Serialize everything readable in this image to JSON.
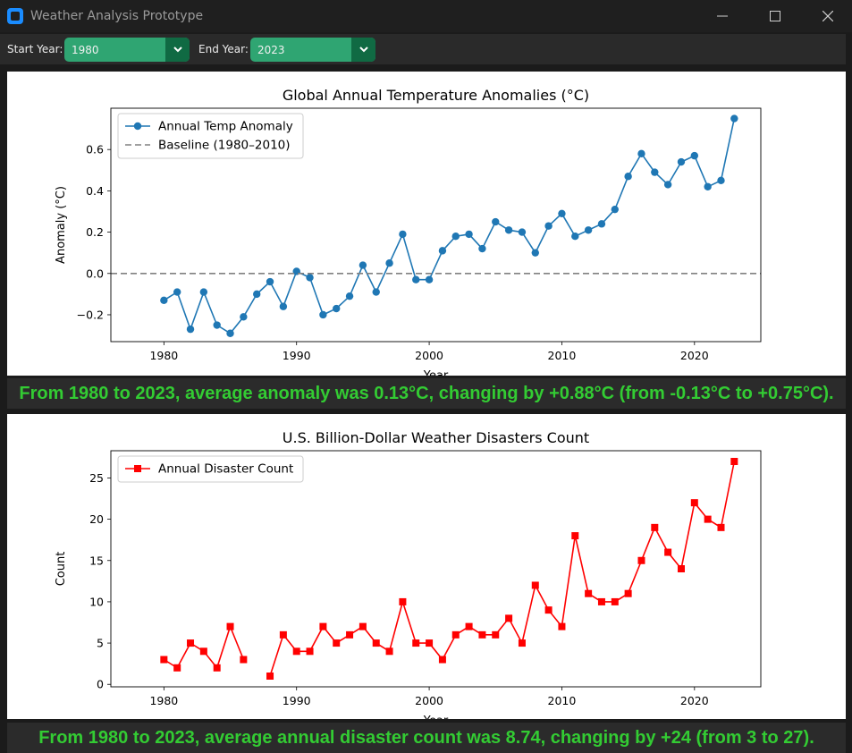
{
  "window": {
    "title": "Weather Analysis Prototype"
  },
  "toolbar": {
    "start_label": "Start Year:",
    "start_value": "1980",
    "end_label": "End Year:",
    "end_value": "2023",
    "accent_color": "#2fa572"
  },
  "temp_summary": "From 1980 to 2023, average anomaly was 0.13°C, changing by +0.88°C (from -0.13°C to +0.75°C).",
  "disaster_summary": "From 1980 to 2023, average annual disaster count was 8.74, changing by +24 (from 3 to 27).",
  "chart_data": [
    {
      "type": "line",
      "title": "Global Annual Temperature Anomalies (°C)",
      "xlabel": "Year",
      "ylabel": "Anomaly (°C)",
      "xlim": [
        1976,
        2025
      ],
      "ylim": [
        -0.33,
        0.8
      ],
      "xticks": [
        1980,
        1990,
        2000,
        2010,
        2020
      ],
      "yticks": [
        -0.2,
        0.0,
        0.2,
        0.4,
        0.6
      ],
      "ytick_labels": [
        "−0.2",
        "0.0",
        "0.2",
        "0.4",
        "0.6"
      ],
      "legend_position": "top-left",
      "series": [
        {
          "name": "Annual Temp Anomaly",
          "color": "#1f77b4",
          "marker": "circle",
          "x": [
            1980,
            1981,
            1982,
            1983,
            1984,
            1985,
            1986,
            1987,
            1988,
            1989,
            1990,
            1991,
            1992,
            1993,
            1994,
            1995,
            1996,
            1997,
            1998,
            1999,
            2000,
            2001,
            2002,
            2003,
            2004,
            2005,
            2006,
            2007,
            2008,
            2009,
            2010,
            2011,
            2012,
            2013,
            2014,
            2015,
            2016,
            2017,
            2018,
            2019,
            2020,
            2021,
            2022,
            2023
          ],
          "values": [
            -0.13,
            -0.09,
            -0.27,
            -0.09,
            -0.25,
            -0.29,
            -0.21,
            -0.1,
            -0.04,
            -0.16,
            0.01,
            -0.02,
            -0.2,
            -0.17,
            -0.11,
            0.04,
            -0.09,
            0.05,
            0.19,
            -0.03,
            -0.03,
            0.11,
            0.18,
            0.19,
            0.12,
            0.25,
            0.21,
            0.2,
            0.1,
            0.23,
            0.29,
            0.18,
            0.21,
            0.24,
            0.31,
            0.47,
            0.58,
            0.49,
            0.43,
            0.54,
            0.57,
            0.42,
            0.45,
            0.75
          ]
        },
        {
          "name": "Baseline (1980–2010)",
          "color": "#808080",
          "style": "dashed",
          "value": 0.0
        }
      ]
    },
    {
      "type": "line",
      "title": "U.S. Billion-Dollar Weather Disasters Count",
      "xlabel": "Year",
      "ylabel": "Count",
      "xlim": [
        1976,
        2025
      ],
      "ylim": [
        -0.3,
        28.3
      ],
      "xticks": [
        1980,
        1990,
        2000,
        2010,
        2020
      ],
      "yticks": [
        0,
        5,
        10,
        15,
        20,
        25
      ],
      "ytick_labels": [
        "0",
        "5",
        "10",
        "15",
        "20",
        "25"
      ],
      "legend_position": "top-left",
      "series": [
        {
          "name": "Annual Disaster Count",
          "color": "#ff0000",
          "marker": "square",
          "x": [
            1980,
            1981,
            1982,
            1983,
            1984,
            1985,
            1986,
            1987,
            1988,
            1989,
            1990,
            1991,
            1992,
            1993,
            1994,
            1995,
            1996,
            1997,
            1998,
            1999,
            2000,
            2001,
            2002,
            2003,
            2004,
            2005,
            2006,
            2007,
            2008,
            2009,
            2010,
            2011,
            2012,
            2013,
            2014,
            2015,
            2016,
            2017,
            2018,
            2019,
            2020,
            2021,
            2022,
            2023
          ],
          "values": [
            3,
            2,
            5,
            4,
            2,
            7,
            3,
            null,
            1,
            6,
            4,
            4,
            7,
            5,
            6,
            7,
            5,
            4,
            10,
            5,
            5,
            3,
            6,
            7,
            6,
            6,
            8,
            5,
            12,
            9,
            7,
            18,
            11,
            10,
            10,
            11,
            15,
            19,
            16,
            14,
            22,
            20,
            19,
            27
          ]
        }
      ]
    }
  ]
}
